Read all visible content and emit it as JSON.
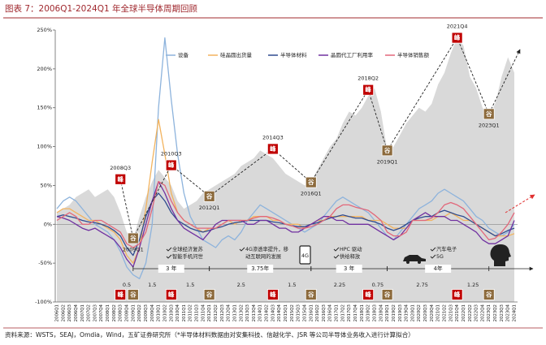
{
  "chart_data": {
    "type": "line",
    "title": "图表 7：2006Q1-2024Q1 年全球半导体周期回顾",
    "source": "资料来源：WSTS，SEAJ，Omdia，Wind，五矿证券研究所（*半导体材料数据由对安集科技、信越化学、JSR 等公司半导体业务收入进行计算拟合）",
    "categories": [
      "2006Q1",
      "2006Q2",
      "2006Q3",
      "2006Q4",
      "2007Q1",
      "2007Q2",
      "2007Q3",
      "2007Q4",
      "2008Q1",
      "2008Q2",
      "2008Q3",
      "2008Q4",
      "2009Q1",
      "2009Q2",
      "2009Q3",
      "2009Q4",
      "2010Q1",
      "2010Q2",
      "2010Q3",
      "2010Q4",
      "2011Q1",
      "2011Q2",
      "2011Q3",
      "2011Q4",
      "2012Q1",
      "2012Q2",
      "2012Q3",
      "2012Q4",
      "2013Q1",
      "2013Q2",
      "2013Q3",
      "2013Q4",
      "2014Q1",
      "2014Q2",
      "2014Q3",
      "2014Q4",
      "2015Q1",
      "2015Q2",
      "2015Q3",
      "2015Q4",
      "2016Q1",
      "2016Q2",
      "2016Q3",
      "2016Q4",
      "2017Q1",
      "2017Q2",
      "2017Q3",
      "2017Q4",
      "2018Q1",
      "2018Q2",
      "2018Q3",
      "2018Q4",
      "2019Q1",
      "2019Q2",
      "2019Q3",
      "2019Q4",
      "2020Q1",
      "2020Q2",
      "2020Q3",
      "2020Q4",
      "2021Q1",
      "2021Q2",
      "2021Q3",
      "2021Q4",
      "2022Q1",
      "2022Q2",
      "2022Q3",
      "2022Q4",
      "2023Q1",
      "2023Q2",
      "2023Q3",
      "2023Q4",
      "2024Q1"
    ],
    "ylim": [
      -100,
      250
    ],
    "yticks": [
      {
        "value": -100,
        "label": "-100%"
      },
      {
        "value": -50,
        "label": "-50%"
      },
      {
        "value": 0,
        "label": "0%"
      },
      {
        "value": 50,
        "label": "50%"
      },
      {
        "value": 100,
        "label": "100%"
      },
      {
        "value": 150,
        "label": "150%"
      },
      {
        "value": 200,
        "label": "200%"
      },
      {
        "value": 250,
        "label": "250%"
      }
    ],
    "grid": false,
    "area": {
      "color": "#d9d9d9",
      "values": [
        15,
        20,
        25,
        35,
        40,
        45,
        35,
        40,
        45,
        35,
        15,
        -10,
        -20,
        10,
        35,
        55,
        70,
        60,
        50,
        30,
        20,
        25,
        30,
        40,
        45,
        50,
        55,
        60,
        65,
        75,
        80,
        85,
        95,
        90,
        85,
        75,
        65,
        60,
        55,
        50,
        55,
        70,
        85,
        100,
        110,
        130,
        145,
        140,
        150,
        165,
        175,
        145,
        95,
        100,
        115,
        130,
        140,
        150,
        145,
        155,
        180,
        195,
        220,
        240,
        230,
        190,
        175,
        150,
        140,
        155,
        190,
        215,
        195
      ]
    },
    "series": [
      {
        "name": "设备",
        "color": "#8db3dc",
        "values": [
          20,
          30,
          35,
          30,
          20,
          10,
          0,
          -5,
          -10,
          -20,
          -35,
          -55,
          -65,
          -70,
          -50,
          0,
          150,
          240,
          160,
          90,
          40,
          10,
          -5,
          -20,
          -25,
          -30,
          -20,
          -15,
          -20,
          -10,
          5,
          15,
          25,
          20,
          15,
          10,
          5,
          0,
          -5,
          -10,
          -5,
          0,
          10,
          20,
          30,
          35,
          30,
          25,
          20,
          15,
          5,
          -5,
          -15,
          -20,
          -10,
          0,
          10,
          20,
          25,
          30,
          40,
          45,
          40,
          35,
          30,
          20,
          10,
          5,
          -5,
          -10,
          -15,
          -10,
          0
        ]
      },
      {
        "name": "硅晶圆出货量",
        "color": "#f2b35e",
        "values": [
          15,
          20,
          20,
          15,
          10,
          5,
          5,
          0,
          -5,
          -10,
          -20,
          -40,
          -50,
          -30,
          20,
          80,
          135,
          90,
          40,
          15,
          5,
          0,
          -5,
          -10,
          -5,
          -5,
          0,
          5,
          0,
          5,
          5,
          10,
          10,
          10,
          5,
          5,
          0,
          0,
          0,
          -5,
          0,
          5,
          5,
          10,
          10,
          10,
          10,
          10,
          10,
          5,
          5,
          5,
          0,
          -5,
          -5,
          -5,
          5,
          5,
          5,
          5,
          10,
          10,
          15,
          10,
          5,
          5,
          0,
          -5,
          -10,
          -15,
          -15,
          -15,
          -12
        ]
      },
      {
        "name": "半导体材料",
        "color": "#2f4b8f",
        "values": [
          10,
          12,
          10,
          8,
          5,
          3,
          2,
          0,
          -3,
          -8,
          -15,
          -30,
          -40,
          -20,
          10,
          30,
          40,
          30,
          15,
          5,
          0,
          -5,
          -8,
          -10,
          -8,
          -5,
          -3,
          0,
          2,
          3,
          5,
          5,
          5,
          5,
          3,
          2,
          0,
          -2,
          -3,
          -3,
          0,
          2,
          5,
          8,
          10,
          12,
          10,
          8,
          8,
          5,
          3,
          0,
          -5,
          -8,
          -5,
          0,
          5,
          8,
          10,
          10,
          15,
          18,
          15,
          12,
          10,
          5,
          0,
          -5,
          -10,
          -15,
          -12,
          -8,
          -5
        ]
      },
      {
        "name": "晶圆代工厂利用率",
        "color": "#7030a0",
        "values": [
          10,
          8,
          5,
          0,
          -5,
          -8,
          -5,
          -10,
          -15,
          -20,
          -30,
          -45,
          -55,
          -30,
          0,
          30,
          55,
          40,
          20,
          5,
          -5,
          -10,
          -15,
          -20,
          -10,
          0,
          5,
          5,
          5,
          5,
          0,
          0,
          5,
          5,
          0,
          -5,
          -5,
          -10,
          -10,
          -5,
          0,
          5,
          10,
          10,
          5,
          5,
          0,
          0,
          0,
          0,
          -5,
          -10,
          -15,
          -20,
          -15,
          -5,
          5,
          10,
          15,
          10,
          10,
          10,
          5,
          5,
          0,
          -5,
          -10,
          -20,
          -25,
          -25,
          -20,
          -15,
          5
        ]
      },
      {
        "name": "半导体销售额",
        "color": "#e2677a",
        "values": [
          5,
          10,
          15,
          10,
          0,
          0,
          5,
          5,
          0,
          -5,
          -10,
          -25,
          -30,
          -25,
          -10,
          20,
          55,
          50,
          30,
          15,
          5,
          0,
          -5,
          -5,
          -5,
          -5,
          0,
          5,
          5,
          5,
          5,
          8,
          10,
          10,
          8,
          5,
          0,
          -2,
          -5,
          -5,
          -3,
          0,
          5,
          10,
          20,
          25,
          25,
          22,
          20,
          18,
          12,
          5,
          -10,
          -15,
          -15,
          -10,
          5,
          5,
          5,
          8,
          15,
          25,
          28,
          25,
          20,
          10,
          0,
          -10,
          -20,
          -18,
          -10,
          0,
          15
        ]
      }
    ],
    "annotations": [
      {
        "label": "2008Q3",
        "mark": "峰",
        "x": "2008Q3",
        "y": 58,
        "color": "#c00000"
      },
      {
        "label": "2009Q1",
        "mark": "谷",
        "x": "2009Q1",
        "y": -18,
        "color": "#8c6a3c"
      },
      {
        "label": "2010Q3",
        "mark": "峰",
        "x": "2010Q3",
        "y": 76,
        "color": "#c00000"
      },
      {
        "label": "2012Q1",
        "mark": "谷",
        "x": "2012Q1",
        "y": 36,
        "color": "#8c6a3c"
      },
      {
        "label": "2014Q3",
        "mark": "峰",
        "x": "2014Q3",
        "y": 97,
        "color": "#c00000"
      },
      {
        "label": "2016Q1",
        "mark": "谷",
        "x": "2016Q1",
        "y": 54,
        "color": "#8c6a3c"
      },
      {
        "label": "2018Q2",
        "mark": "峰",
        "x": "2018Q2",
        "y": 173,
        "color": "#c00000"
      },
      {
        "label": "2019Q1",
        "mark": "谷",
        "x": "2019Q1",
        "y": 95,
        "color": "#8c6a3c"
      },
      {
        "label": "2021Q4",
        "mark": "峰",
        "x": "2021Q4",
        "y": 240,
        "color": "#c00000"
      },
      {
        "label": "2023Q1",
        "mark": "谷",
        "x": "2023Q1",
        "y": 142,
        "color": "#8c6a3c"
      }
    ],
    "durations": [
      0.5,
      1.5,
      1.5,
      2.5,
      1.5,
      2.25,
      0.75,
      2.75,
      1.25
    ],
    "cycles": [
      "3 年",
      "3.75年",
      "3 年",
      "4年"
    ],
    "drivers": [
      [
        "全球经济复苏",
        "智能手机问世"
      ],
      [
        "4G渗透率提升，移",
        "动互联网的发展"
      ],
      [
        "HPC 驱动",
        "供给释放"
      ],
      [
        "汽车电子",
        "5G"
      ]
    ],
    "icon_text": "4G"
  }
}
